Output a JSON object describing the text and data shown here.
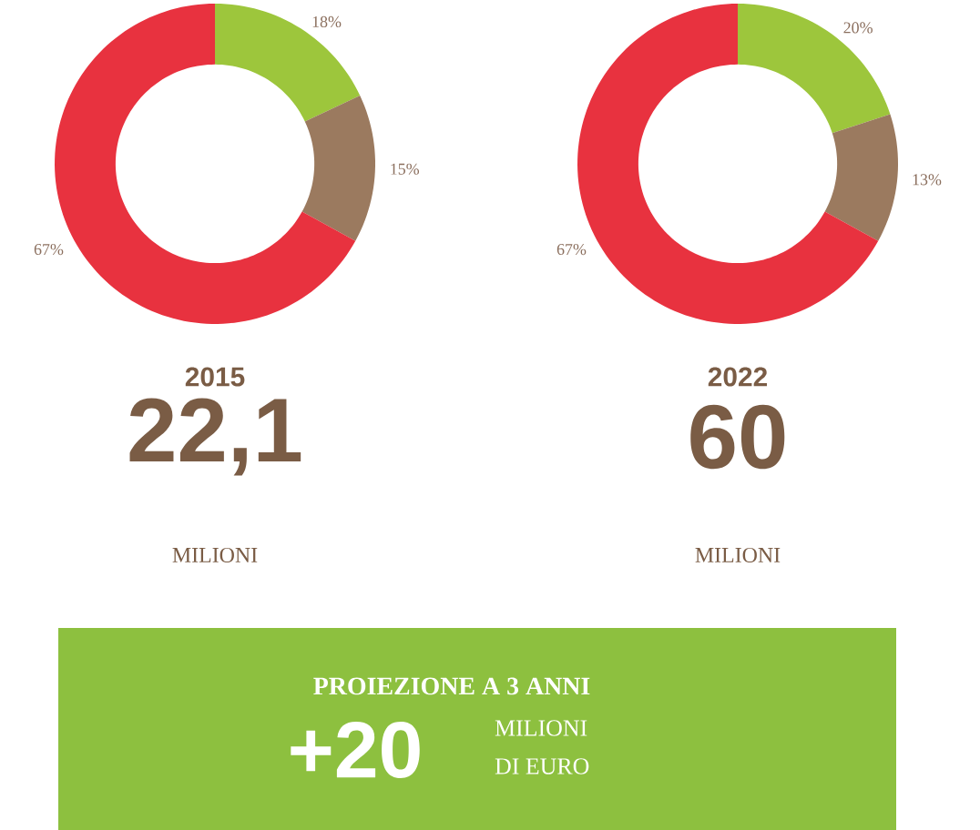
{
  "chart_data": [
    {
      "type": "donut",
      "title": "2015",
      "categories": [
        null,
        null,
        null
      ],
      "values": [
        18,
        15,
        67
      ],
      "colors": [
        "#9dc63c",
        "#9b7a5f",
        "#e8323f"
      ],
      "value_labels": [
        "18%",
        "15%",
        "67%"
      ],
      "annotations": [
        "22,1",
        "MILIONI"
      ]
    },
    {
      "type": "donut",
      "title": "2022",
      "categories": [
        null,
        null,
        null
      ],
      "values": [
        20,
        13,
        67
      ],
      "colors": [
        "#9dc63c",
        "#9b7a5f",
        "#e8323f"
      ],
      "value_labels": [
        "20%",
        "13%",
        "67%"
      ],
      "annotations": [
        "60",
        "MILIONI"
      ]
    },
    {
      "type": "other",
      "title": "PROIEZIONE A 3 ANNI",
      "color": "#8dc03f",
      "annotations": [
        "+20",
        "MILIONI",
        "DI EURO"
      ]
    }
  ]
}
